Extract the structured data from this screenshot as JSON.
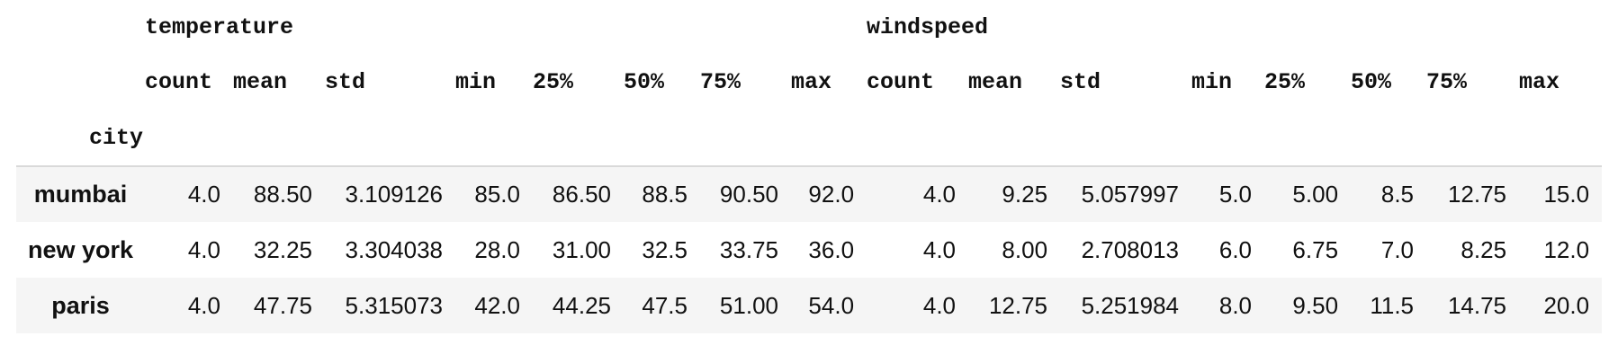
{
  "table": {
    "groups": [
      "temperature",
      "windspeed"
    ],
    "stats": [
      "count",
      "mean",
      "std",
      "min",
      "25%",
      "50%",
      "75%",
      "max"
    ],
    "index_name": "city",
    "rows": [
      {
        "label": "mumbai",
        "values": [
          "4.0",
          "88.50",
          "3.109126",
          "85.0",
          "86.50",
          "88.5",
          "90.50",
          "92.0",
          "4.0",
          "9.25",
          "5.057997",
          "5.0",
          "5.00",
          "8.5",
          "12.75",
          "15.0"
        ]
      },
      {
        "label": "new york",
        "values": [
          "4.0",
          "32.25",
          "3.304038",
          "28.0",
          "31.00",
          "32.5",
          "33.75",
          "36.0",
          "4.0",
          "8.00",
          "2.708013",
          "6.0",
          "6.75",
          "7.0",
          "8.25",
          "12.0"
        ]
      },
      {
        "label": "paris",
        "values": [
          "4.0",
          "47.75",
          "5.315073",
          "42.0",
          "44.25",
          "47.5",
          "51.00",
          "54.0",
          "4.0",
          "12.75",
          "5.251984",
          "8.0",
          "9.50",
          "11.5",
          "14.75",
          "20.0"
        ]
      }
    ]
  }
}
